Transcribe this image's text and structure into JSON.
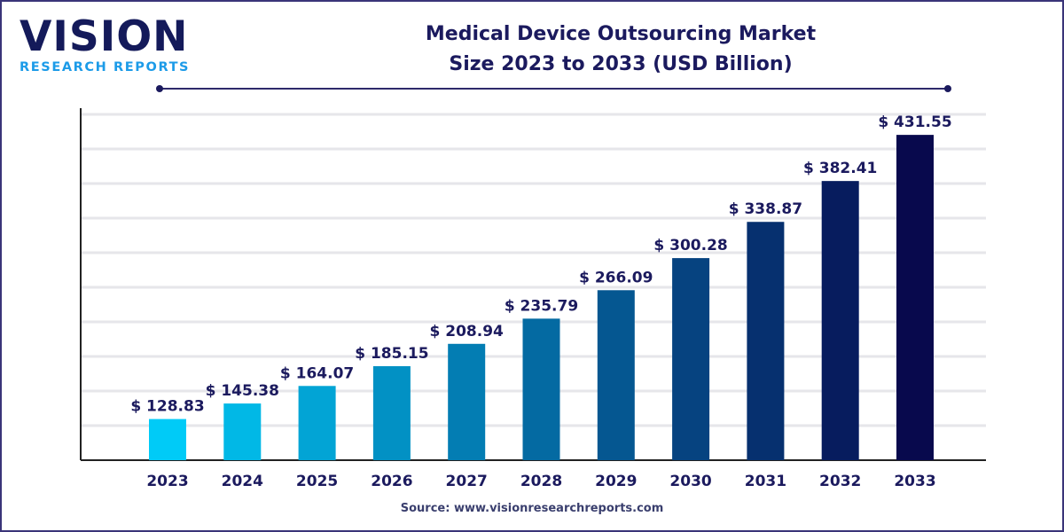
{
  "logo": {
    "line1": "VISION",
    "line2": "RESEARCH REPORTS"
  },
  "chart_data": {
    "type": "bar",
    "title": "Medical Device Outsourcing Market Size 2023 to 2033 (USD Billion)",
    "title_lines": [
      "Medical Device Outsourcing Market",
      "Size 2023 to 2033 (USD Billion)"
    ],
    "categories": [
      "2023",
      "2024",
      "2025",
      "2026",
      "2027",
      "2028",
      "2029",
      "2030",
      "2031",
      "2032",
      "2033"
    ],
    "values": [
      128.83,
      145.38,
      164.07,
      185.15,
      208.94,
      235.79,
      266.09,
      300.28,
      338.87,
      382.41,
      431.55
    ],
    "data_labels": [
      "$ 128.83",
      "$ 145.38",
      "$ 164.07",
      "$ 185.15",
      "$ 208.94",
      "$ 235.79",
      "$ 266.09",
      "$ 300.28",
      "$ 338.87",
      "$ 382.41",
      "$ 431.55"
    ],
    "xlabel": "",
    "ylabel": "",
    "ylim": [
      85,
      460
    ],
    "grid": true,
    "legend": "none",
    "colors": {
      "start": "#00cbf7",
      "end": "#08094d",
      "text": "#1b1a5e",
      "grid": "#e6e6ea"
    }
  },
  "source": "Source: www.visionresearchreports.com"
}
